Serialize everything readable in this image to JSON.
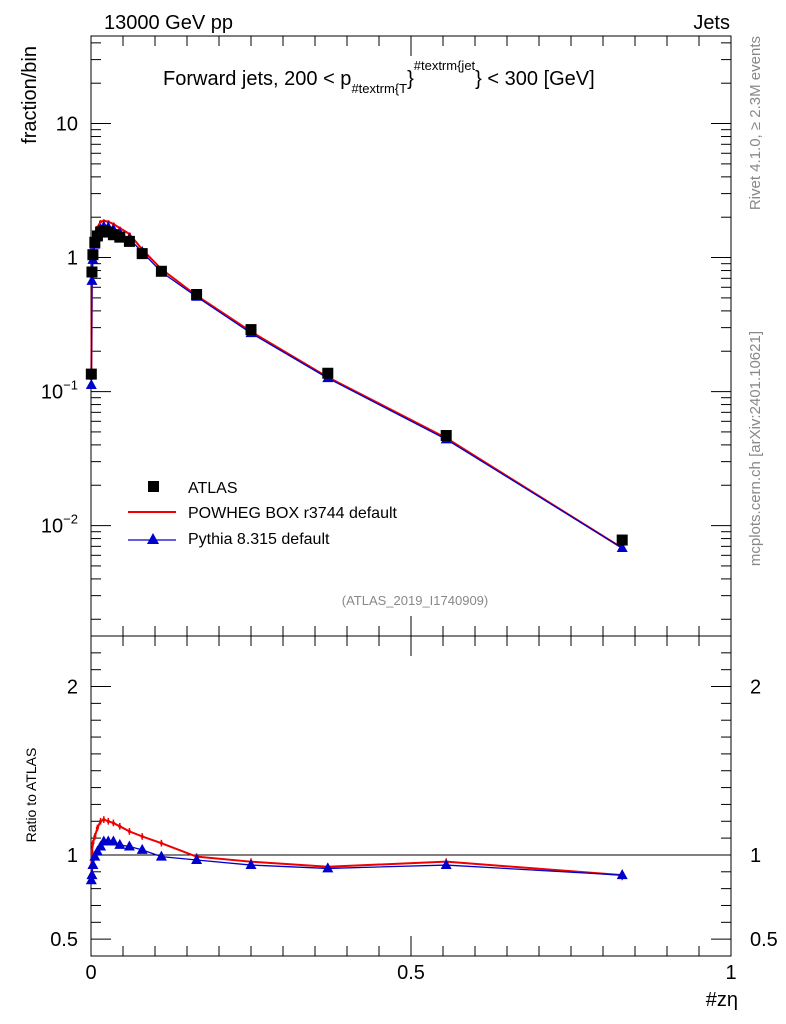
{
  "header": {
    "energy_label": "13000 GeV pp",
    "process_label": "Jets",
    "title_main": "Forward jets, 200 < p",
    "title_sub": "#textrm{T",
    "title_brace": "}",
    "title_sup": "#textrm{jet",
    "title_end": "} < 300 [GeV]",
    "ref_id": "(ATLAS_2019_I1740909)",
    "side_rivet": "Rivet 4.1.0, ≥ 2.3M events",
    "side_site": "mcplots.cern.ch [arXiv:2401.10621]"
  },
  "colors": {
    "data": "#000000",
    "powheg": "#ee0000",
    "pythia": "#0000cc"
  },
  "chart_data": [
    {
      "type": "line",
      "panel": "main",
      "ylabel": "fraction/bin",
      "yscale": "log",
      "ylim": [
        0.0015,
        45
      ],
      "xlim": [
        0,
        1
      ],
      "yticks": [
        {
          "value": 10,
          "base": "10",
          "exp": ""
        },
        {
          "value": 1,
          "base": "1",
          "exp": ""
        },
        {
          "value": 0.1,
          "base": "10",
          "exp": "−1"
        },
        {
          "value": 0.01,
          "base": "10",
          "exp": "−2"
        }
      ],
      "legend": {
        "position": "bottom-left",
        "entries": [
          {
            "key": "atlas",
            "label": "ATLAS",
            "marker": "square"
          },
          {
            "key": "powheg",
            "label": "POWHEG BOX r3744 default",
            "marker": "line"
          },
          {
            "key": "pythia",
            "label": "Pythia 8.315 default",
            "marker": "triangle"
          }
        ]
      },
      "series": [
        {
          "key": "atlas",
          "name": "ATLAS",
          "x": [
            0.0005,
            0.0015,
            0.003,
            0.006,
            0.01,
            0.015,
            0.02,
            0.027,
            0.035,
            0.045,
            0.06,
            0.08,
            0.11,
            0.165,
            0.25,
            0.37,
            0.555,
            0.83
          ],
          "values": [
            0.135,
            0.78,
            1.05,
            1.3,
            1.45,
            1.55,
            1.58,
            1.55,
            1.48,
            1.42,
            1.32,
            1.07,
            0.79,
            0.53,
            0.29,
            0.137,
            0.047,
            0.0078
          ]
        },
        {
          "key": "powheg",
          "name": "POWHEG BOX r3744 default",
          "x": [
            0.0005,
            0.0015,
            0.003,
            0.006,
            0.01,
            0.015,
            0.02,
            0.027,
            0.035,
            0.045,
            0.06,
            0.08,
            0.11,
            0.165,
            0.25,
            0.37,
            0.555,
            0.83
          ],
          "values": [
            0.125,
            0.8,
            1.12,
            1.45,
            1.68,
            1.85,
            1.88,
            1.85,
            1.78,
            1.66,
            1.5,
            1.15,
            0.82,
            0.52,
            0.28,
            0.128,
            0.045,
            0.0068
          ]
        },
        {
          "key": "pythia",
          "name": "Pythia 8.315 default",
          "x": [
            0.0005,
            0.0015,
            0.003,
            0.006,
            0.01,
            0.015,
            0.02,
            0.027,
            0.035,
            0.045,
            0.06,
            0.08,
            0.11,
            0.165,
            0.25,
            0.37,
            0.555,
            0.83
          ],
          "values": [
            0.112,
            0.67,
            0.96,
            1.25,
            1.47,
            1.62,
            1.7,
            1.68,
            1.62,
            1.52,
            1.38,
            1.1,
            0.78,
            0.51,
            0.273,
            0.126,
            0.044,
            0.0068
          ]
        }
      ]
    },
    {
      "type": "line",
      "panel": "ratio",
      "ylabel": "Ratio to ATLAS",
      "xlabel": "#zη",
      "ylim": [
        0.4,
        2.3
      ],
      "xlim": [
        0,
        1
      ],
      "yticks": [
        0.5,
        1,
        2
      ],
      "xticks": [
        {
          "value": 0,
          "label": "0"
        },
        {
          "value": 0.5,
          "label": "0.5"
        },
        {
          "value": 1,
          "label": "1"
        }
      ],
      "series": [
        {
          "key": "powheg",
          "name": "POWHEG BOX r3744 default",
          "x": [
            0.0005,
            0.0015,
            0.003,
            0.006,
            0.01,
            0.015,
            0.02,
            0.027,
            0.035,
            0.045,
            0.06,
            0.08,
            0.11,
            0.165,
            0.25,
            0.37,
            0.555,
            0.83
          ],
          "values": [
            0.93,
            1.02,
            1.07,
            1.11,
            1.16,
            1.2,
            1.21,
            1.2,
            1.19,
            1.17,
            1.14,
            1.11,
            1.07,
            0.99,
            0.96,
            0.93,
            0.96,
            0.88
          ],
          "errors": [
            0.03,
            0.02,
            0.02,
            0.02,
            0.02,
            0.02,
            0.02,
            0.02,
            0.02,
            0.02,
            0.02,
            0.02,
            0.02,
            0.02,
            0.02,
            0.02,
            0.02,
            0.03
          ]
        },
        {
          "key": "pythia",
          "name": "Pythia 8.315 default",
          "x": [
            0.0005,
            0.0015,
            0.003,
            0.006,
            0.01,
            0.015,
            0.02,
            0.027,
            0.035,
            0.045,
            0.06,
            0.08,
            0.11,
            0.165,
            0.25,
            0.37,
            0.555,
            0.83
          ],
          "values": [
            0.85,
            0.88,
            0.94,
            0.99,
            1.02,
            1.05,
            1.08,
            1.08,
            1.08,
            1.06,
            1.05,
            1.03,
            0.99,
            0.97,
            0.94,
            0.92,
            0.94,
            0.88
          ],
          "errors": [
            0.02,
            0.02,
            0.01,
            0.01,
            0.01,
            0.01,
            0.01,
            0.01,
            0.01,
            0.01,
            0.01,
            0.01,
            0.01,
            0.01,
            0.01,
            0.01,
            0.01,
            0.02
          ]
        }
      ]
    }
  ]
}
